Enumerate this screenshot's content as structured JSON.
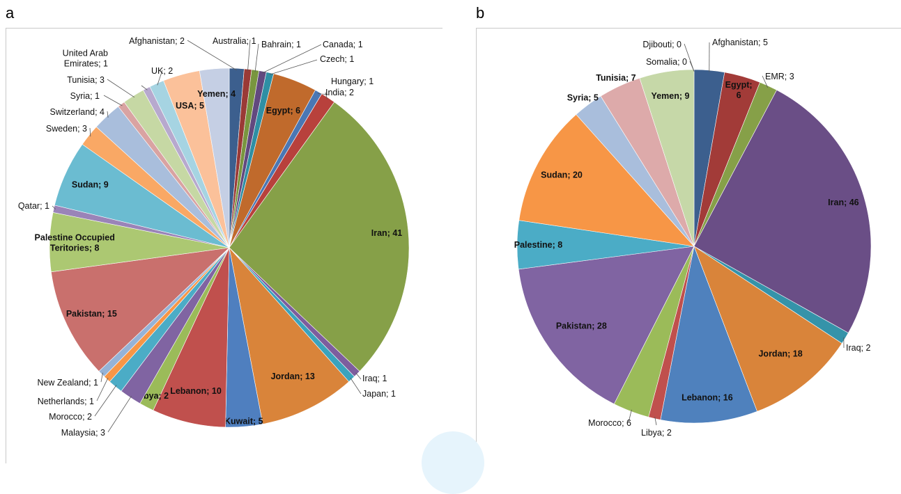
{
  "panels": {
    "a": {
      "letter": "a"
    },
    "b": {
      "letter": "b"
    }
  },
  "chart_data": [
    {
      "type": "pie",
      "panel": "a",
      "start": "12 o'clock",
      "direction": "clockwise",
      "label_format": "{name}; {value}",
      "slices": [
        {
          "name": "Afghanistan",
          "value": 2,
          "color": "#3c5f8e"
        },
        {
          "name": "Australia",
          "value": 1,
          "color": "#9a3a36"
        },
        {
          "name": "Bahrain",
          "value": 1,
          "color": "#79963f"
        },
        {
          "name": "Canada",
          "value": 1,
          "color": "#62497f"
        },
        {
          "name": "Czech",
          "value": 1,
          "color": "#2f8fa4"
        },
        {
          "name": "Egypt",
          "value": 6,
          "color": "#c06a2c"
        },
        {
          "name": "Hungary",
          "value": 1,
          "color": "#4a77b4"
        },
        {
          "name": "India",
          "value": 2,
          "color": "#b8413c"
        },
        {
          "name": "Iran",
          "value": 41,
          "color": "#86a048"
        },
        {
          "name": "Iraq",
          "value": 1,
          "color": "#7d5d9e"
        },
        {
          "name": "Japan",
          "value": 1,
          "color": "#3aa3bd"
        },
        {
          "name": "Jordan",
          "value": 13,
          "color": "#d9843a"
        },
        {
          "name": "Kuwait",
          "value": 5,
          "color": "#4f7fbf"
        },
        {
          "name": "Lebanon",
          "value": 10,
          "color": "#c0504d"
        },
        {
          "name": "Libya",
          "value": 2,
          "color": "#9bbb59"
        },
        {
          "name": "Malaysia",
          "value": 3,
          "color": "#8064a2"
        },
        {
          "name": "Morocco",
          "value": 2,
          "color": "#4bacc6"
        },
        {
          "name": "Netherlands",
          "value": 1,
          "color": "#f79646"
        },
        {
          "name": "New Zealand",
          "value": 1,
          "color": "#95b3d7"
        },
        {
          "name": "Pakistan",
          "value": 15,
          "color": "#c9706d"
        },
        {
          "name": "Palestine Occupied Teritories",
          "value": 8,
          "color": "#acc872"
        },
        {
          "name": "Qatar",
          "value": 1,
          "color": "#9a84b8"
        },
        {
          "name": "Sudan",
          "value": 9,
          "color": "#6bbcd1"
        },
        {
          "name": "Sweden",
          "value": 3,
          "color": "#f9a865"
        },
        {
          "name": "Switzerland",
          "value": 4,
          "color": "#a9bedc"
        },
        {
          "name": "Syria",
          "value": 1,
          "color": "#d9a3a2"
        },
        {
          "name": "Tunisia",
          "value": 3,
          "color": "#c6d8a4"
        },
        {
          "name": "United Arab Emirates",
          "value": 1,
          "color": "#b7a9ce"
        },
        {
          "name": "UK",
          "value": 2,
          "color": "#a6d4e2"
        },
        {
          "name": "USA",
          "value": 5,
          "color": "#fbc19a"
        },
        {
          "name": "Yemen",
          "value": 4,
          "color": "#c5cfe4"
        }
      ]
    },
    {
      "type": "pie",
      "panel": "b",
      "start": "12 o'clock",
      "direction": "clockwise",
      "label_format": "{name}; {value}",
      "slices": [
        {
          "name": "Afghanistan",
          "value": 5,
          "color": "#3c5f8e"
        },
        {
          "name": "Egypt",
          "value": 6,
          "color": "#a23b38"
        },
        {
          "name": "EMR",
          "value": 3,
          "color": "#86a048"
        },
        {
          "name": "Iran",
          "value": 46,
          "color": "#6a4e86"
        },
        {
          "name": "Iraq",
          "value": 2,
          "color": "#3593a9"
        },
        {
          "name": "Jordan",
          "value": 18,
          "color": "#d9843a"
        },
        {
          "name": "Lebanon",
          "value": 16,
          "color": "#4f81bd"
        },
        {
          "name": "Libya",
          "value": 2,
          "color": "#c0504d"
        },
        {
          "name": "Morocco",
          "value": 6,
          "color": "#9bbb59"
        },
        {
          "name": "Pakistan",
          "value": 28,
          "color": "#8064a2"
        },
        {
          "name": "Palestine",
          "value": 8,
          "color": "#4bacc6"
        },
        {
          "name": "Sudan",
          "value": 20,
          "color": "#f79646"
        },
        {
          "name": "Syria",
          "value": 5,
          "color": "#a9bedc"
        },
        {
          "name": "Tunisia",
          "value": 7,
          "color": "#ddaaaa"
        },
        {
          "name": "Yemen",
          "value": 9,
          "color": "#c6d8a8"
        },
        {
          "name": "Somalia",
          "value": 0,
          "color": "#b7a9ce"
        },
        {
          "name": "Djibouti",
          "value": 0,
          "color": "#a6d4e2"
        }
      ]
    }
  ]
}
